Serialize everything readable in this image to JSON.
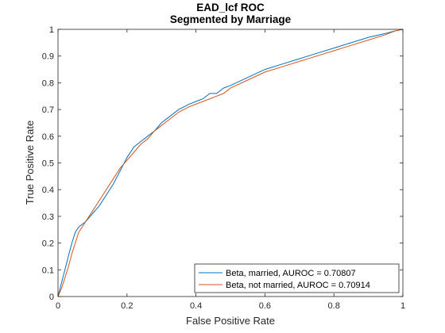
{
  "chart_data": {
    "type": "line",
    "title": "EAD_lcf ROC",
    "subtitle": "Segmented by Marriage",
    "xlabel": "False Positive Rate",
    "ylabel": "True Positive Rate",
    "xlim": [
      0,
      1
    ],
    "ylim": [
      0,
      1
    ],
    "xticks": [
      "0",
      "0.2",
      "0.4",
      "0.6",
      "0.8",
      "1"
    ],
    "yticks": [
      "0",
      "0.1",
      "0.2",
      "0.3",
      "0.4",
      "0.5",
      "0.6",
      "0.7",
      "0.8",
      "0.9",
      "1"
    ],
    "grid": false,
    "legend_position": "bottom-right",
    "series": [
      {
        "name": "Beta, married, AUROC = 0.70807",
        "color": "#0072BD",
        "x": [
          0,
          0.01,
          0.02,
          0.03,
          0.04,
          0.05,
          0.06,
          0.08,
          0.1,
          0.12,
          0.14,
          0.16,
          0.18,
          0.2,
          0.22,
          0.24,
          0.26,
          0.28,
          0.3,
          0.32,
          0.35,
          0.38,
          0.4,
          0.42,
          0.44,
          0.46,
          0.48,
          0.5,
          0.55,
          0.6,
          0.65,
          0.7,
          0.75,
          0.8,
          0.85,
          0.9,
          0.95,
          0.98,
          1.0
        ],
        "y": [
          0,
          0.05,
          0.1,
          0.15,
          0.2,
          0.24,
          0.26,
          0.28,
          0.31,
          0.34,
          0.38,
          0.42,
          0.47,
          0.52,
          0.56,
          0.58,
          0.6,
          0.62,
          0.65,
          0.67,
          0.7,
          0.72,
          0.73,
          0.74,
          0.76,
          0.76,
          0.78,
          0.79,
          0.82,
          0.85,
          0.87,
          0.89,
          0.91,
          0.93,
          0.95,
          0.97,
          0.985,
          0.995,
          1.0
        ]
      },
      {
        "name": "Beta, not married, AUROC = 0.70914",
        "color": "#D95319",
        "x": [
          0,
          0.01,
          0.02,
          0.03,
          0.04,
          0.05,
          0.06,
          0.08,
          0.1,
          0.12,
          0.14,
          0.16,
          0.18,
          0.2,
          0.22,
          0.24,
          0.26,
          0.28,
          0.3,
          0.32,
          0.35,
          0.38,
          0.4,
          0.42,
          0.44,
          0.46,
          0.48,
          0.5,
          0.55,
          0.6,
          0.65,
          0.7,
          0.75,
          0.8,
          0.85,
          0.9,
          0.95,
          0.98,
          1.0
        ],
        "y": [
          0,
          0.03,
          0.07,
          0.11,
          0.16,
          0.2,
          0.24,
          0.28,
          0.32,
          0.36,
          0.4,
          0.44,
          0.48,
          0.51,
          0.54,
          0.57,
          0.59,
          0.62,
          0.64,
          0.66,
          0.69,
          0.71,
          0.72,
          0.73,
          0.74,
          0.75,
          0.76,
          0.78,
          0.81,
          0.84,
          0.86,
          0.88,
          0.9,
          0.92,
          0.94,
          0.96,
          0.98,
          0.995,
          1.0
        ]
      }
    ]
  }
}
